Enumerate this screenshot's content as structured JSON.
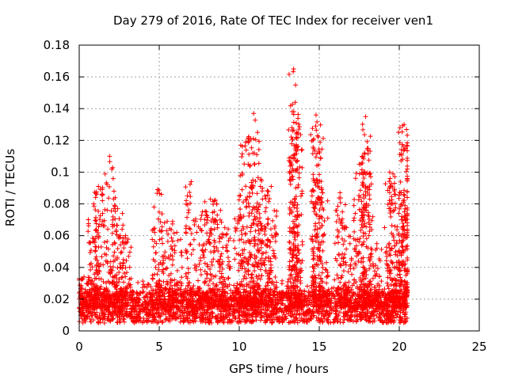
{
  "chart_data": {
    "type": "scatter",
    "title": "Day 279 of 2016, Rate Of TEC Index for receiver ven1",
    "xlabel": "GPS time / hours",
    "ylabel": "ROTI / TECUs",
    "xlim": [
      0,
      25
    ],
    "ylim": [
      0,
      0.18
    ],
    "xticks": [
      0,
      5,
      10,
      15,
      20,
      25
    ],
    "yticks": [
      0,
      0.02,
      0.04,
      0.06,
      0.08,
      0.1,
      0.12,
      0.14,
      0.16,
      0.18
    ],
    "xtick_labels": [
      "0",
      "5",
      "10",
      "15",
      "20",
      "25"
    ],
    "ytick_labels": [
      "0",
      "0.02",
      "0.04",
      "0.06",
      "0.08",
      "0.1",
      "0.12",
      "0.14",
      "0.16",
      "0.18"
    ],
    "grid": true,
    "marker": "+",
    "color": "#ff0000",
    "data_range_hours": [
      0,
      20.5
    ],
    "baseline_band": [
      0.005,
      0.025
    ],
    "activity_peaks": [
      {
        "x": 0.3,
        "y": 0.034
      },
      {
        "x": 0.9,
        "y": 0.08
      },
      {
        "x": 1.2,
        "y": 0.091
      },
      {
        "x": 1.9,
        "y": 0.11
      },
      {
        "x": 2.4,
        "y": 0.077
      },
      {
        "x": 2.9,
        "y": 0.06
      },
      {
        "x": 4.9,
        "y": 0.089
      },
      {
        "x": 5.5,
        "y": 0.069
      },
      {
        "x": 6.1,
        "y": 0.062
      },
      {
        "x": 7.0,
        "y": 0.094
      },
      {
        "x": 7.7,
        "y": 0.075
      },
      {
        "x": 8.2,
        "y": 0.083
      },
      {
        "x": 8.6,
        "y": 0.08
      },
      {
        "x": 9.1,
        "y": 0.065
      },
      {
        "x": 10.0,
        "y": 0.085
      },
      {
        "x": 10.4,
        "y": 0.119
      },
      {
        "x": 10.9,
        "y": 0.137
      },
      {
        "x": 11.1,
        "y": 0.111
      },
      {
        "x": 11.6,
        "y": 0.085
      },
      {
        "x": 12.0,
        "y": 0.091
      },
      {
        "x": 13.4,
        "y": 0.165
      },
      {
        "x": 13.5,
        "y": 0.144
      },
      {
        "x": 13.6,
        "y": 0.125
      },
      {
        "x": 14.8,
        "y": 0.136
      },
      {
        "x": 14.9,
        "y": 0.123
      },
      {
        "x": 15.2,
        "y": 0.087
      },
      {
        "x": 16.3,
        "y": 0.087
      },
      {
        "x": 16.7,
        "y": 0.065
      },
      {
        "x": 17.5,
        "y": 0.105
      },
      {
        "x": 17.9,
        "y": 0.135
      },
      {
        "x": 18.0,
        "y": 0.115
      },
      {
        "x": 18.6,
        "y": 0.055
      },
      {
        "x": 19.4,
        "y": 0.1
      },
      {
        "x": 19.7,
        "y": 0.093
      },
      {
        "x": 20.1,
        "y": 0.087
      },
      {
        "x": 20.3,
        "y": 0.13
      },
      {
        "x": 20.4,
        "y": 0.115
      }
    ]
  }
}
